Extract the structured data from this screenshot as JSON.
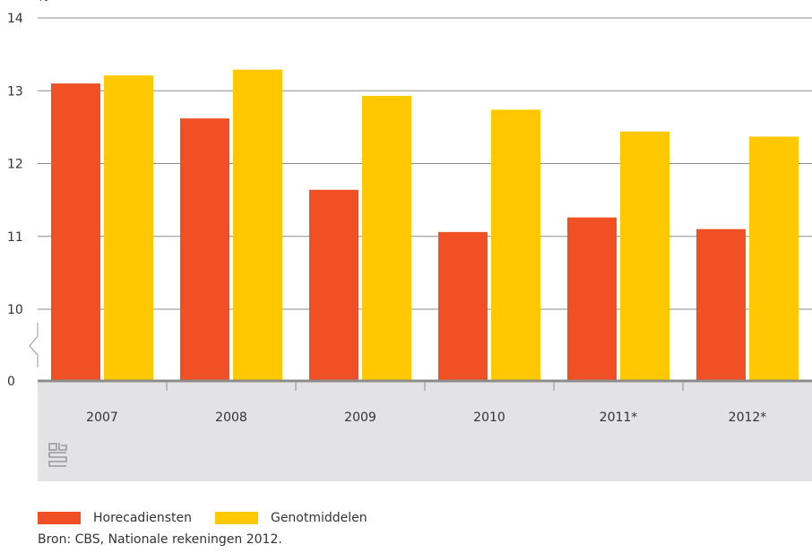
{
  "chart_data": {
    "type": "bar",
    "categories": [
      "2007",
      "2008",
      "2009",
      "2010",
      "2011*",
      "2012*"
    ],
    "series": [
      {
        "name": "Horecadiensten",
        "color": "#f05023",
        "values": [
          13.1,
          12.62,
          11.64,
          11.06,
          11.26,
          11.1
        ]
      },
      {
        "name": "Genotmiddelen",
        "color": "#ffc800",
        "values": [
          13.21,
          13.29,
          12.93,
          12.74,
          12.44,
          12.37
        ]
      }
    ],
    "yticks": [
      "14",
      "13",
      "12",
      "11",
      "10",
      "0"
    ],
    "ylim": [
      9,
      14
    ],
    "axis_break": true,
    "ylabel": "%",
    "legend_position": "bottom-left",
    "grid": true
  },
  "source": "Bron: CBS, Nationale rekeningen 2012.",
  "logo": "cbs-logo"
}
